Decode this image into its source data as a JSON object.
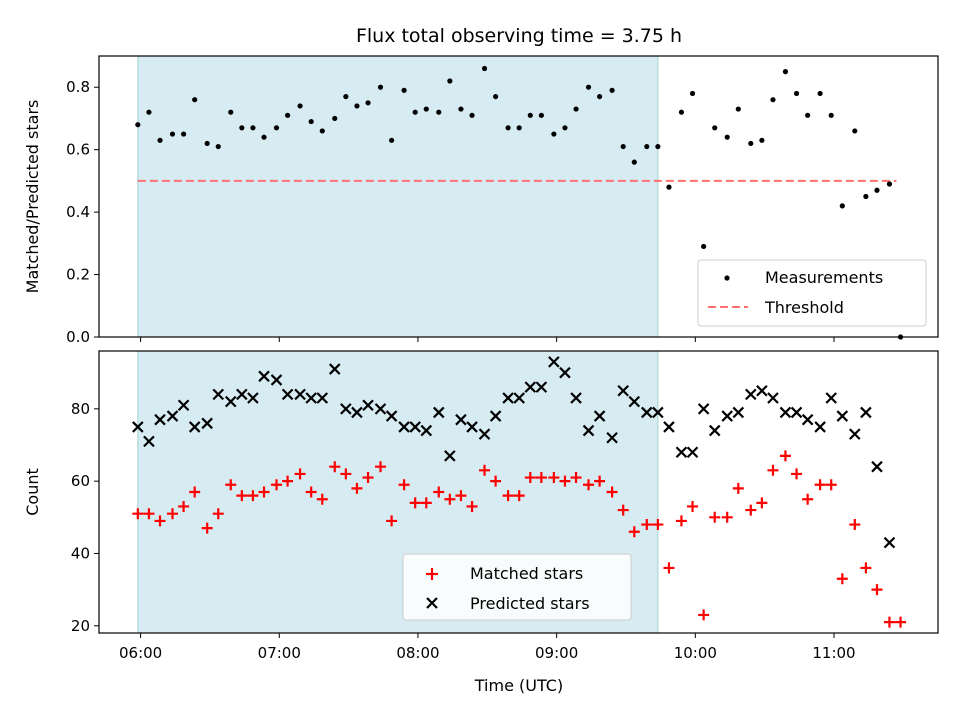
{
  "chart_data": {
    "type": "scatter",
    "title": "Flux total observing time = 3.75 h",
    "xlabel": "Time (UTC)",
    "x_ticks": [
      "06:00",
      "07:00",
      "08:00",
      "09:00",
      "10:00",
      "11:00"
    ],
    "x_tick_hours": [
      6,
      7,
      8,
      9,
      10,
      11
    ],
    "xlim_hours": [
      5.7,
      11.75
    ],
    "shaded_span_hours": [
      5.98,
      9.73
    ],
    "shaded_color": "#add8e6",
    "panels": [
      {
        "ylabel": "Matched/Predicted stars",
        "ylim": [
          0,
          0.9
        ],
        "yticks": [
          "0.0",
          "0.2",
          "0.4",
          "0.6",
          "0.8"
        ],
        "ytick_values": [
          0,
          0.2,
          0.4,
          0.6,
          0.8
        ],
        "threshold": {
          "name": "Threshold",
          "value": 0.5,
          "color": "#ff7070",
          "style": "dashed"
        },
        "series": [
          {
            "name": "Measurements",
            "marker": "dot",
            "color": "#000000",
            "x": [
              5.98,
              6.06,
              6.14,
              6.23,
              6.31,
              6.39,
              6.48,
              6.56,
              6.65,
              6.73,
              6.81,
              6.89,
              6.98,
              7.06,
              7.15,
              7.23,
              7.31,
              7.4,
              7.48,
              7.56,
              7.64,
              7.73,
              7.81,
              7.9,
              7.98,
              8.06,
              8.15,
              8.23,
              8.31,
              8.39,
              8.48,
              8.56,
              8.65,
              8.73,
              8.81,
              8.89,
              8.98,
              9.06,
              9.14,
              9.23,
              9.31,
              9.4,
              9.48,
              9.56,
              9.65,
              9.73,
              9.81,
              9.9,
              9.98,
              10.06,
              10.14,
              10.23,
              10.31,
              10.4,
              10.48,
              10.56,
              10.65,
              10.73,
              10.81,
              10.9,
              10.98,
              11.06,
              11.15,
              11.23,
              11.31,
              11.4,
              11.48
            ],
            "y": [
              0.68,
              0.72,
              0.63,
              0.65,
              0.65,
              0.76,
              0.62,
              0.61,
              0.72,
              0.67,
              0.67,
              0.64,
              0.67,
              0.71,
              0.74,
              0.69,
              0.66,
              0.7,
              0.77,
              0.74,
              0.75,
              0.8,
              0.63,
              0.79,
              0.72,
              0.73,
              0.72,
              0.82,
              0.73,
              0.71,
              0.86,
              0.77,
              0.67,
              0.67,
              0.71,
              0.71,
              0.65,
              0.67,
              0.73,
              0.8,
              0.77,
              0.79,
              0.61,
              0.56,
              0.61,
              0.61,
              0.48,
              0.72,
              0.78,
              0.29,
              0.67,
              0.64,
              0.73,
              0.62,
              0.63,
              0.76,
              0.85,
              0.78,
              0.71,
              0.78,
              0.71,
              0.42,
              0.66,
              0.45,
              0.47,
              0.49,
              0.0
            ]
          }
        ],
        "legend": {
          "placement": "lower-right",
          "entries": [
            "Measurements",
            "Threshold"
          ]
        }
      },
      {
        "ylabel": "Count",
        "ylim": [
          18,
          96
        ],
        "yticks": [
          "20",
          "40",
          "60",
          "80"
        ],
        "ytick_values": [
          20,
          40,
          60,
          80
        ],
        "series": [
          {
            "name": "Matched stars",
            "marker": "plus",
            "color": "#ff0000",
            "x": [
              5.98,
              6.06,
              6.14,
              6.23,
              6.31,
              6.39,
              6.48,
              6.56,
              6.65,
              6.73,
              6.81,
              6.89,
              6.98,
              7.06,
              7.15,
              7.23,
              7.31,
              7.4,
              7.48,
              7.56,
              7.64,
              7.73,
              7.81,
              7.9,
              7.98,
              8.06,
              8.15,
              8.23,
              8.31,
              8.39,
              8.48,
              8.56,
              8.65,
              8.73,
              8.81,
              8.89,
              8.98,
              9.06,
              9.14,
              9.23,
              9.31,
              9.4,
              9.48,
              9.56,
              9.65,
              9.73,
              9.81,
              9.9,
              9.98,
              10.06,
              10.14,
              10.23,
              10.31,
              10.4,
              10.48,
              10.56,
              10.65,
              10.73,
              10.81,
              10.9,
              10.98,
              11.06,
              11.15,
              11.23,
              11.31,
              11.4,
              11.48
            ],
            "y": [
              51,
              51,
              49,
              51,
              53,
              57,
              47,
              51,
              59,
              56,
              56,
              57,
              59,
              60,
              62,
              57,
              55,
              64,
              62,
              58,
              61,
              64,
              49,
              59,
              54,
              54,
              57,
              55,
              56,
              53,
              63,
              60,
              56,
              56,
              61,
              61,
              61,
              60,
              61,
              59,
              60,
              57,
              52,
              46,
              48,
              48,
              36,
              49,
              53,
              23,
              50,
              50,
              58,
              52,
              54,
              63,
              67,
              62,
              55,
              59,
              59,
              33,
              48,
              36,
              30,
              21,
              21
            ]
          },
          {
            "name": "Predicted stars",
            "marker": "x",
            "color": "#000000",
            "x": [
              5.98,
              6.06,
              6.14,
              6.23,
              6.31,
              6.39,
              6.48,
              6.56,
              6.65,
              6.73,
              6.81,
              6.89,
              6.98,
              7.06,
              7.15,
              7.23,
              7.31,
              7.4,
              7.48,
              7.56,
              7.64,
              7.73,
              7.81,
              7.9,
              7.98,
              8.06,
              8.15,
              8.23,
              8.31,
              8.39,
              8.48,
              8.56,
              8.65,
              8.73,
              8.81,
              8.89,
              8.98,
              9.06,
              9.14,
              9.23,
              9.31,
              9.4,
              9.48,
              9.56,
              9.65,
              9.73,
              9.81,
              9.9,
              9.98,
              10.06,
              10.14,
              10.23,
              10.31,
              10.4,
              10.48,
              10.56,
              10.65,
              10.73,
              10.81,
              10.9,
              10.98,
              11.06,
              11.15,
              11.23,
              11.31,
              11.4
            ],
            "y": [
              75,
              71,
              77,
              78,
              81,
              75,
              76,
              84,
              82,
              84,
              83,
              89,
              88,
              84,
              84,
              83,
              83,
              91,
              80,
              79,
              81,
              80,
              78,
              75,
              75,
              74,
              79,
              67,
              77,
              75,
              73,
              78,
              83,
              83,
              86,
              86,
              93,
              90,
              83,
              74,
              78,
              72,
              85,
              82,
              79,
              79,
              75,
              68,
              68,
              80,
              74,
              78,
              79,
              84,
              85,
              83,
              79,
              79,
              77,
              75,
              83,
              78,
              73,
              79,
              64,
              43
            ]
          }
        ],
        "legend": {
          "placement": "bottom-center",
          "entries": [
            "Matched stars",
            "Predicted stars"
          ]
        }
      }
    ]
  }
}
